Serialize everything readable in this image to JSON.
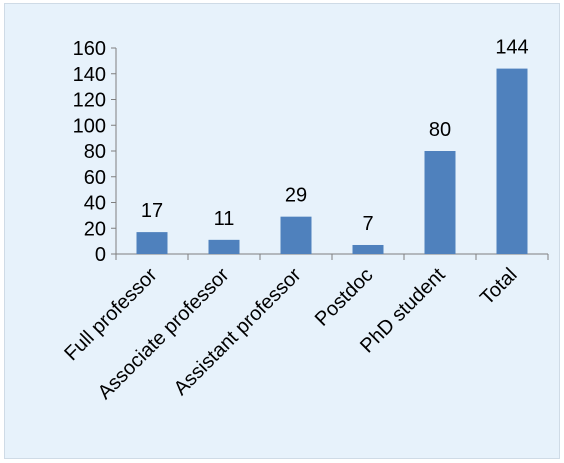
{
  "chart_data": {
    "type": "bar",
    "categories": [
      "Full professor",
      "Associate professor",
      "Assistant professor",
      "Postdoc",
      "PhD student",
      "Total"
    ],
    "values": [
      17,
      11,
      29,
      7,
      80,
      144
    ],
    "data_labels": [
      "17",
      "11",
      "29",
      "7",
      "80",
      "144"
    ],
    "yticks": [
      "0",
      "20",
      "40",
      "60",
      "80",
      "100",
      "120",
      "140",
      "160"
    ],
    "ylim": [
      0,
      160
    ],
    "grid": false,
    "legend": "none",
    "bar_color": "#4f81bd",
    "background_color": "#e7f2fb"
  }
}
